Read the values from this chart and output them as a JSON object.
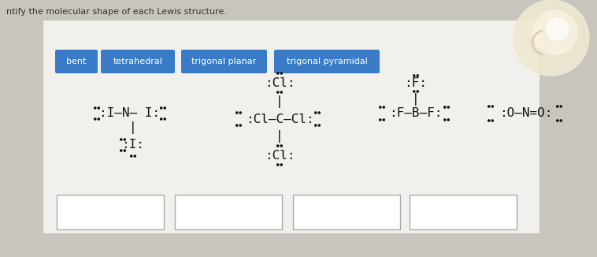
{
  "bg_color": "#c8c4be",
  "white_area_color": "#f0eeea",
  "button_color": "#3a7bc8",
  "button_text_color": "#ffffff",
  "buttons": [
    "bent",
    "tetrahedral",
    "trigonal planar",
    "trigonal pyramidal"
  ],
  "title": "ntify the molecular shape of each Lewis structure.",
  "title_color": "#333333",
  "mol_color": "#111111",
  "dot_color": "#222222",
  "answer_box_color": "#ffffff",
  "answer_box_edge": "#aaaaaa",
  "light_circle_color": "#f8f4e8"
}
